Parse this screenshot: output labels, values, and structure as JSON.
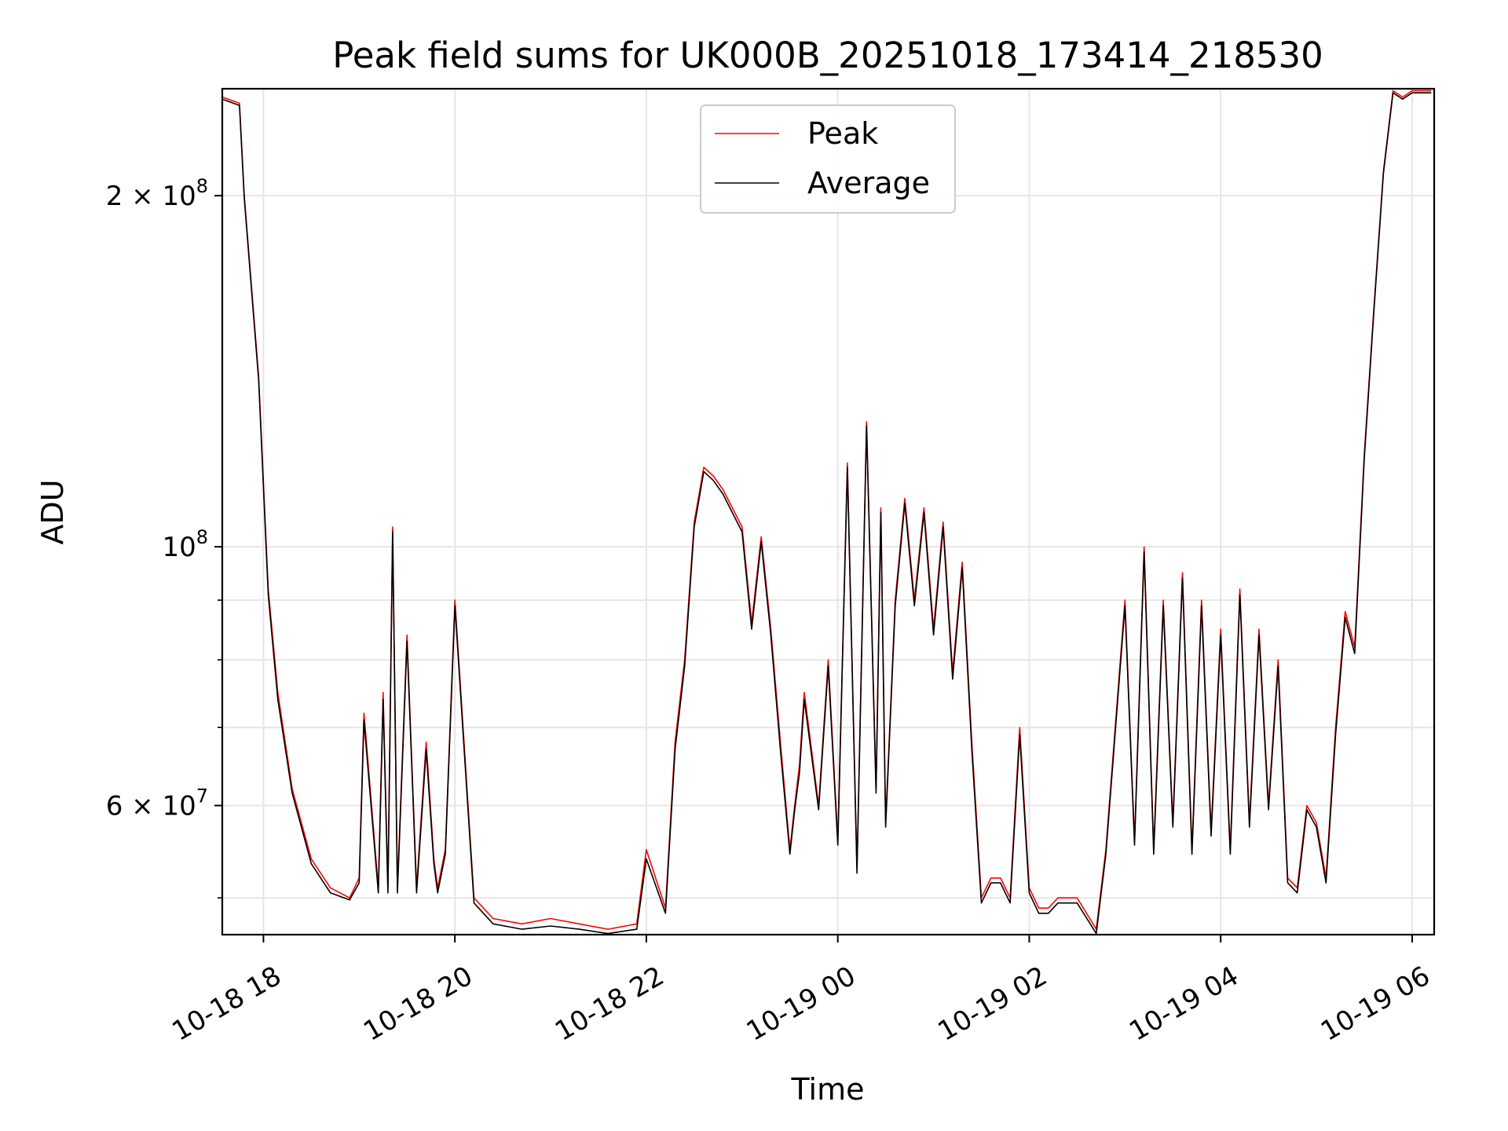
{
  "chart_data": {
    "type": "line",
    "title": "Peak field sums for UK000B_20251018_173414_218530",
    "xlabel": "Time",
    "ylabel": "ADU",
    "yscale": "log",
    "ylim": [
      46500000,
      247000000
    ],
    "xlim_hours": [
      -0.43,
      12.23
    ],
    "x_ticks": [
      "10-18 18",
      "10-18 20",
      "10-18 22",
      "10-19 00",
      "10-19 02",
      "10-19 04",
      "10-19 06"
    ],
    "x_tick_hours": [
      0,
      2,
      4,
      6,
      8,
      10,
      12
    ],
    "y_ticks": [
      {
        "value": 200000000,
        "mantissa": "2 × 10",
        "exp": "8"
      },
      {
        "value": 100000000,
        "mantissa": "10",
        "exp": "8"
      },
      {
        "value": 60000000,
        "mantissa": "6 × 10",
        "exp": "7"
      }
    ],
    "y_minor_ticks": [
      50000000,
      70000000,
      80000000,
      90000000
    ],
    "grid": true,
    "legend_position": "upper center",
    "legend": [
      "Peak",
      "Average"
    ],
    "series": [
      {
        "name": "Peak",
        "color": "#ff0000",
        "x": [
          -0.43,
          -0.25,
          -0.2,
          -0.05,
          0.05,
          0.15,
          0.3,
          0.5,
          0.7,
          0.9,
          1.0,
          1.05,
          1.2,
          1.25,
          1.3,
          1.35,
          1.4,
          1.5,
          1.6,
          1.7,
          1.78,
          1.82,
          1.9,
          2.0,
          2.2,
          2.4,
          2.7,
          3.0,
          3.3,
          3.6,
          3.9,
          4.0,
          4.2,
          4.3,
          4.4,
          4.5,
          4.6,
          4.7,
          4.8,
          5.0,
          5.1,
          5.2,
          5.3,
          5.4,
          5.5,
          5.55,
          5.6,
          5.65,
          5.8,
          5.9,
          6.0,
          6.1,
          6.2,
          6.3,
          6.4,
          6.45,
          6.5,
          6.6,
          6.7,
          6.8,
          6.9,
          7.0,
          7.1,
          7.2,
          7.3,
          7.4,
          7.5,
          7.6,
          7.7,
          7.8,
          7.9,
          8.0,
          8.1,
          8.2,
          8.3,
          8.5,
          8.7,
          8.8,
          9.0,
          9.1,
          9.2,
          9.3,
          9.4,
          9.5,
          9.6,
          9.7,
          9.8,
          9.9,
          10.0,
          10.1,
          10.2,
          10.3,
          10.4,
          10.5,
          10.6,
          10.7,
          10.8,
          10.9,
          11.0,
          11.1,
          11.2,
          11.3,
          11.4,
          11.5,
          11.6,
          11.7,
          11.8,
          11.9,
          12.0,
          12.1,
          12.2
        ],
        "values": [
          243000000,
          240000000,
          200000000,
          140000000,
          92000000,
          75000000,
          62000000,
          54000000,
          51000000,
          50000000,
          52000000,
          72000000,
          51000000,
          75000000,
          51000000,
          104000000,
          51000000,
          84000000,
          51000000,
          68000000,
          54000000,
          51000000,
          55000000,
          90000000,
          50000000,
          48000000,
          47500000,
          48000000,
          47500000,
          47000000,
          47500000,
          55000000,
          49000000,
          68000000,
          80000000,
          105000000,
          117000000,
          115000000,
          112000000,
          104000000,
          86000000,
          102000000,
          85000000,
          68000000,
          55000000,
          60000000,
          65000000,
          75000000,
          60000000,
          80000000,
          56000000,
          118000000,
          53000000,
          128000000,
          62000000,
          108000000,
          58000000,
          90000000,
          110000000,
          90000000,
          108000000,
          85000000,
          105000000,
          78000000,
          97000000,
          68000000,
          50000000,
          52000000,
          52000000,
          50000000,
          70000000,
          51000000,
          49000000,
          49000000,
          50000000,
          50000000,
          47000000,
          55000000,
          90000000,
          56000000,
          100000000,
          55000000,
          90000000,
          58000000,
          95000000,
          55000000,
          90000000,
          57000000,
          85000000,
          55000000,
          92000000,
          58000000,
          85000000,
          60000000,
          80000000,
          52000000,
          51000000,
          60000000,
          58000000,
          52000000,
          70000000,
          88000000,
          82000000,
          120000000,
          160000000,
          210000000,
          246000000,
          243000000,
          246000000,
          246000000,
          246000000
        ]
      },
      {
        "name": "Average",
        "color": "#000000",
        "x": [
          -0.43,
          -0.25,
          -0.2,
          -0.05,
          0.05,
          0.15,
          0.3,
          0.5,
          0.7,
          0.9,
          1.0,
          1.05,
          1.2,
          1.25,
          1.3,
          1.35,
          1.4,
          1.5,
          1.6,
          1.7,
          1.78,
          1.82,
          1.9,
          2.0,
          2.2,
          2.4,
          2.7,
          3.0,
          3.3,
          3.6,
          3.9,
          4.0,
          4.2,
          4.3,
          4.4,
          4.5,
          4.6,
          4.7,
          4.8,
          5.0,
          5.1,
          5.2,
          5.3,
          5.4,
          5.5,
          5.55,
          5.6,
          5.65,
          5.8,
          5.9,
          6.0,
          6.1,
          6.2,
          6.3,
          6.4,
          6.45,
          6.5,
          6.6,
          6.7,
          6.8,
          6.9,
          7.0,
          7.1,
          7.2,
          7.3,
          7.4,
          7.5,
          7.6,
          7.7,
          7.8,
          7.9,
          8.0,
          8.1,
          8.2,
          8.3,
          8.5,
          8.7,
          8.8,
          9.0,
          9.1,
          9.2,
          9.3,
          9.4,
          9.5,
          9.6,
          9.7,
          9.8,
          9.9,
          10.0,
          10.1,
          10.2,
          10.3,
          10.4,
          10.5,
          10.6,
          10.7,
          10.8,
          10.9,
          11.0,
          11.1,
          11.2,
          11.3,
          11.4,
          11.5,
          11.6,
          11.7,
          11.8,
          11.9,
          12.0,
          12.1,
          12.2
        ],
        "values": [
          242000000,
          239000000,
          199000000,
          139000000,
          91000000,
          74000000,
          61500000,
          53500000,
          50500000,
          49800000,
          51500000,
          71000000,
          50500000,
          74000000,
          50500000,
          103000000,
          50500000,
          83000000,
          50500000,
          67000000,
          53500000,
          50500000,
          54500000,
          89000000,
          49500000,
          47500000,
          47000000,
          47300000,
          47000000,
          46600000,
          47000000,
          54000000,
          48500000,
          67000000,
          79000000,
          104000000,
          116000000,
          114000000,
          111000000,
          103000000,
          85000000,
          101000000,
          84000000,
          67000000,
          54500000,
          59500000,
          64000000,
          74000000,
          59500000,
          79000000,
          55500000,
          117000000,
          52500000,
          127000000,
          61500000,
          107000000,
          57500000,
          89000000,
          109000000,
          89000000,
          107000000,
          84000000,
          104000000,
          77000000,
          96000000,
          67000000,
          49500000,
          51500000,
          51500000,
          49500000,
          69000000,
          50500000,
          48500000,
          48500000,
          49500000,
          49500000,
          46600000,
          54500000,
          89000000,
          55500000,
          99000000,
          54500000,
          89000000,
          57500000,
          94000000,
          54500000,
          89000000,
          56500000,
          84000000,
          54500000,
          91000000,
          57500000,
          84000000,
          59500000,
          79000000,
          51500000,
          50500000,
          59500000,
          57500000,
          51500000,
          69000000,
          87000000,
          81000000,
          119000000,
          159000000,
          209000000,
          245000000,
          242000000,
          245000000,
          245000000,
          245000000
        ]
      }
    ]
  }
}
